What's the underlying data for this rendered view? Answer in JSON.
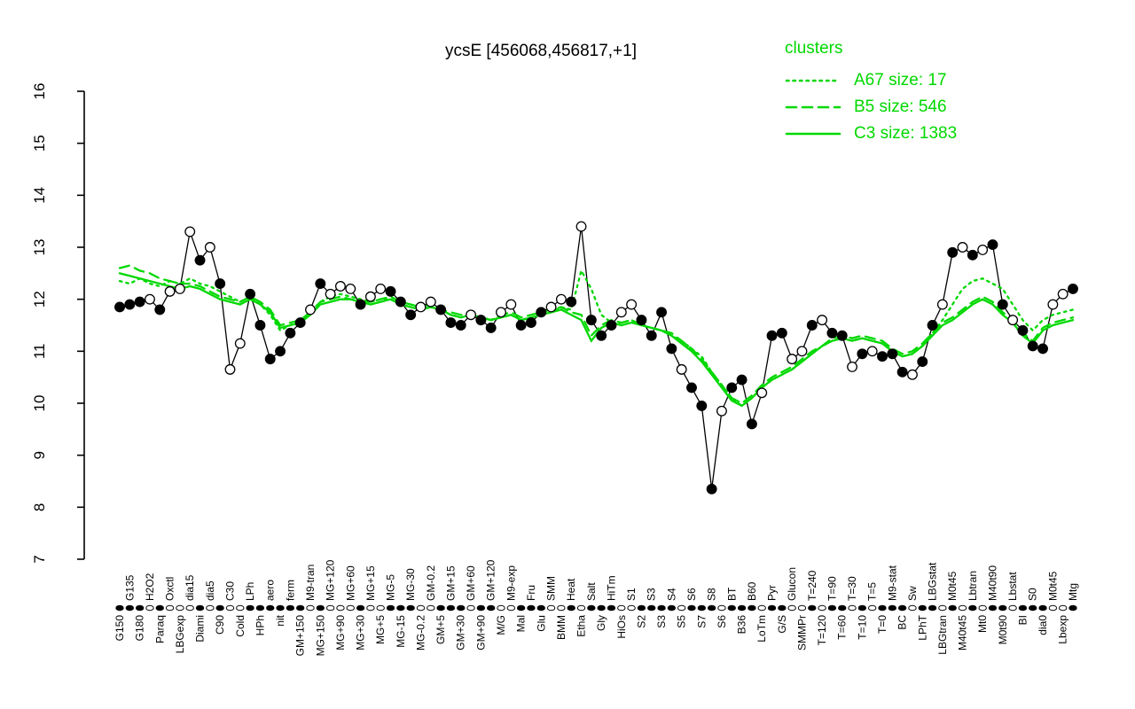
{
  "title": "ycsE [456068,456817,+1]",
  "legend": {
    "heading": "clusters",
    "entries": [
      {
        "label": "A67 size: 17",
        "style": "dotted"
      },
      {
        "label": "B5 size: 546",
        "style": "dashed"
      },
      {
        "label": "C3 size: 1383",
        "style": "solid"
      }
    ]
  },
  "colors": {
    "cluster": "#00d800",
    "profile": "#000000",
    "background": "#ffffff"
  },
  "chart_data": {
    "type": "line",
    "title": "ycsE [456068,456817,+1]",
    "xlabel": "",
    "ylabel": "",
    "ylim": [
      7,
      16
    ],
    "yticks": [
      7,
      8,
      9,
      10,
      11,
      12,
      13,
      14,
      15,
      16
    ],
    "grid": false,
    "legend_position": "top-right",
    "categories": [
      "G150",
      "G135",
      "G180",
      "H2O2",
      "Paraq",
      "Oxctl",
      "LBGexp",
      "dia15",
      "Diami",
      "dia5",
      "C90",
      "C30",
      "Cold",
      "LPh",
      "HPh",
      "aero",
      "nit",
      "ferm",
      "GM+150",
      "M9-tran",
      "MG+150",
      "MG+120",
      "MG+90",
      "MG+60",
      "MG+30",
      "MG+15",
      "MG+5",
      "MG-5",
      "MG-15",
      "MG-30",
      "MG-0.2",
      "GM-0.2",
      "GM+5",
      "GM+15",
      "GM+30",
      "GM+60",
      "GM+90",
      "GM+120",
      "M/G",
      "M9-exp",
      "Mal",
      "Fru",
      "Glu",
      "SMM",
      "BMM",
      "Heat",
      "Etha",
      "Salt",
      "Gly",
      "HiTm",
      "HiOs",
      "S1",
      "S2",
      "S3",
      "S3",
      "S4",
      "S5",
      "S6",
      "S7",
      "S8",
      "S6",
      "BT",
      "B36",
      "B60",
      "LoTm",
      "Pyr",
      "G/S",
      "Glucon",
      "SMMPr",
      "T=240",
      "T=120",
      "T=90",
      "T=60",
      "T=30",
      "T=10",
      "T=5",
      "T=0",
      "M9-stat",
      "BC",
      "Sw",
      "LPhT",
      "LBGstat",
      "LBGtran",
      "M0t45",
      "M40t45",
      "Lbtran",
      "Mt0",
      "M40t90",
      "M0t90",
      "Lbstat",
      "BI",
      "S0",
      "dia0",
      "M0t45",
      "Lbexp",
      "Mtg"
    ],
    "profile": {
      "name": "ycsE",
      "values": [
        11.85,
        11.9,
        11.95,
        12.0,
        11.8,
        12.15,
        12.2,
        13.3,
        12.75,
        13.0,
        12.3,
        10.65,
        11.15,
        12.1,
        11.5,
        10.85,
        11.0,
        11.35,
        11.55,
        11.8,
        12.3,
        12.1,
        12.25,
        12.2,
        11.9,
        12.05,
        12.2,
        12.15,
        11.95,
        11.7,
        11.85,
        11.95,
        11.8,
        11.55,
        11.5,
        11.7,
        11.6,
        11.45,
        11.75,
        11.9,
        11.5,
        11.55,
        11.75,
        11.85,
        12.0,
        11.95,
        13.4,
        11.6,
        11.3,
        11.5,
        11.75,
        11.9,
        11.6,
        11.3,
        11.75,
        11.05,
        10.65,
        10.3,
        9.95,
        8.35,
        9.85,
        10.3,
        10.45,
        9.6,
        10.2,
        11.3,
        11.35,
        10.85,
        11.0,
        11.5,
        11.6,
        11.35,
        11.3,
        10.7,
        10.95,
        11.0,
        10.9,
        10.95,
        10.6,
        10.55,
        10.8,
        11.5,
        11.9,
        12.9,
        13.0,
        12.85,
        12.95,
        13.05,
        11.9,
        11.6,
        11.4,
        11.1,
        11.05,
        11.9,
        12.1,
        12.2
      ],
      "open": [
        0,
        0,
        0,
        1,
        0,
        1,
        1,
        1,
        0,
        1,
        0,
        1,
        1,
        0,
        0,
        0,
        0,
        0,
        0,
        1,
        0,
        1,
        1,
        1,
        0,
        1,
        1,
        0,
        0,
        0,
        1,
        1,
        0,
        0,
        0,
        1,
        0,
        0,
        1,
        1,
        0,
        0,
        0,
        1,
        1,
        0,
        1,
        0,
        0,
        0,
        1,
        1,
        0,
        0,
        0,
        0,
        1,
        0,
        0,
        0,
        1,
        0,
        0,
        0,
        1,
        0,
        0,
        1,
        1,
        0,
        1,
        0,
        0,
        1,
        0,
        1,
        0,
        0,
        0,
        1,
        0,
        0,
        1,
        0,
        1,
        0,
        1,
        0,
        0,
        1,
        0,
        0,
        0,
        1,
        1,
        0
      ]
    },
    "series": [
      {
        "name": "A67",
        "size": 17,
        "style": "dotted",
        "values": [
          12.35,
          12.3,
          12.4,
          12.3,
          12.25,
          12.35,
          12.3,
          12.4,
          12.3,
          12.25,
          12.15,
          12.05,
          11.95,
          12.05,
          11.9,
          11.7,
          11.4,
          11.5,
          11.6,
          11.75,
          11.95,
          12.05,
          12.1,
          12.05,
          12.0,
          11.95,
          12.0,
          12.0,
          11.9,
          11.85,
          11.8,
          11.85,
          11.8,
          11.7,
          11.65,
          11.7,
          11.65,
          11.6,
          11.65,
          11.7,
          11.6,
          11.65,
          11.7,
          11.75,
          11.85,
          11.8,
          12.55,
          12.2,
          11.7,
          11.55,
          11.55,
          11.6,
          11.5,
          11.45,
          11.4,
          11.3,
          11.2,
          11.05,
          10.9,
          10.6,
          10.35,
          10.1,
          9.95,
          10.1,
          10.3,
          10.45,
          10.55,
          10.65,
          10.8,
          10.95,
          11.1,
          11.2,
          11.25,
          11.2,
          11.25,
          11.2,
          11.15,
          11.0,
          10.9,
          10.95,
          11.1,
          11.35,
          11.6,
          11.9,
          12.2,
          12.35,
          12.4,
          12.3,
          12.2,
          11.9,
          11.6,
          11.4,
          11.6,
          11.7,
          11.75,
          11.8
        ]
      },
      {
        "name": "B5",
        "size": 546,
        "style": "dashed",
        "values": [
          12.6,
          12.65,
          12.55,
          12.5,
          12.4,
          12.35,
          12.3,
          12.3,
          12.25,
          12.15,
          12.05,
          12.0,
          11.95,
          12.05,
          11.95,
          11.8,
          11.5,
          11.55,
          11.6,
          11.75,
          11.95,
          12.0,
          12.05,
          12.0,
          11.95,
          11.95,
          12.0,
          12.05,
          11.95,
          11.9,
          11.85,
          11.9,
          11.8,
          11.75,
          11.7,
          11.7,
          11.65,
          11.6,
          11.7,
          11.75,
          11.65,
          11.7,
          11.75,
          11.8,
          11.85,
          11.75,
          11.7,
          11.3,
          11.5,
          11.6,
          11.55,
          11.6,
          11.5,
          11.45,
          11.4,
          11.35,
          11.2,
          11.05,
          10.85,
          10.6,
          10.35,
          10.1,
          10.0,
          10.15,
          10.35,
          10.5,
          10.6,
          10.7,
          10.85,
          11.0,
          11.1,
          11.25,
          11.3,
          11.25,
          11.3,
          11.25,
          11.2,
          11.05,
          10.95,
          11.0,
          11.15,
          11.35,
          11.55,
          11.65,
          11.8,
          11.95,
          12.05,
          11.95,
          11.75,
          11.6,
          11.35,
          11.2,
          11.45,
          11.55,
          11.6,
          11.65
        ]
      },
      {
        "name": "C3",
        "size": 1383,
        "style": "solid",
        "values": [
          12.5,
          12.45,
          12.4,
          12.35,
          12.3,
          12.25,
          12.2,
          12.25,
          12.2,
          12.1,
          12.0,
          11.95,
          11.9,
          12.0,
          11.9,
          11.75,
          11.45,
          11.5,
          11.55,
          11.7,
          11.9,
          11.95,
          12.0,
          12.0,
          11.95,
          11.9,
          11.95,
          12.0,
          11.9,
          11.85,
          11.8,
          11.85,
          11.8,
          11.7,
          11.65,
          11.7,
          11.65,
          11.6,
          11.65,
          11.7,
          11.6,
          11.65,
          11.7,
          11.75,
          11.8,
          11.7,
          11.6,
          11.2,
          11.45,
          11.55,
          11.5,
          11.55,
          11.5,
          11.45,
          11.4,
          11.3,
          11.15,
          11.0,
          10.8,
          10.55,
          10.3,
          10.05,
          9.95,
          10.1,
          10.3,
          10.45,
          10.55,
          10.65,
          10.8,
          10.95,
          11.1,
          11.2,
          11.25,
          11.2,
          11.25,
          11.2,
          11.15,
          11.0,
          10.9,
          10.95,
          11.1,
          11.3,
          11.5,
          11.6,
          11.75,
          11.9,
          12.0,
          11.9,
          11.7,
          11.55,
          11.3,
          11.15,
          11.4,
          11.5,
          11.55,
          11.6
        ]
      }
    ]
  }
}
